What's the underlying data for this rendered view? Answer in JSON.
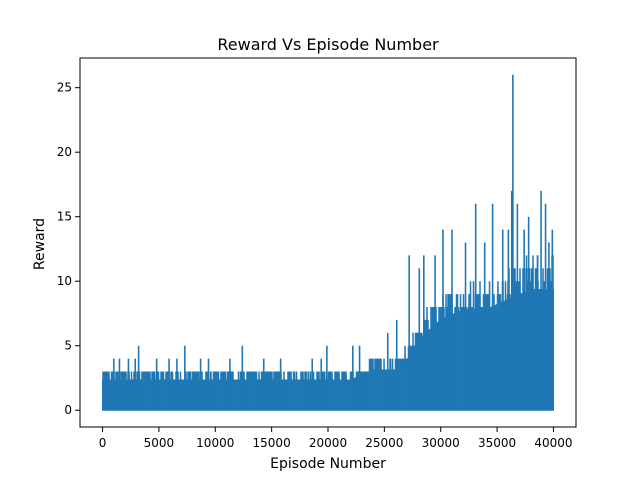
{
  "chart_data": {
    "type": "line",
    "title": "Reward Vs Episode Number",
    "xlabel": "Episode Number",
    "ylabel": "Reward",
    "xlim": [
      -2000,
      42000
    ],
    "ylim": [
      -1.3,
      27.3
    ],
    "xticks": [
      0,
      5000,
      10000,
      15000,
      20000,
      25000,
      30000,
      35000,
      40000
    ],
    "xtick_labels": [
      "0",
      "5000",
      "10000",
      "15000",
      "20000",
      "25000",
      "30000",
      "35000",
      "40000"
    ],
    "yticks": [
      0,
      5,
      10,
      15,
      20,
      25
    ],
    "ytick_labels": [
      "0",
      "5",
      "10",
      "15",
      "20",
      "25"
    ],
    "grid": false,
    "legend": "none",
    "color": "#1f77b4",
    "series": [
      {
        "x_range": [
          0,
          40000
        ],
        "band": {
          "x": [
            0,
            2500,
            5000,
            10000,
            15000,
            20000,
            22000,
            24000,
            26000,
            27000,
            28000,
            30000,
            32000,
            34000,
            36000,
            38000,
            40000
          ],
          "low": [
            0,
            0,
            0,
            0,
            0,
            0,
            0,
            0,
            0,
            0,
            0,
            0,
            0,
            0,
            0,
            0,
            0
          ],
          "high": [
            3,
            3,
            3,
            3,
            3,
            3,
            3,
            4,
            4,
            5,
            7,
            9,
            10,
            10,
            11,
            12,
            12
          ]
        },
        "spikes": [
          {
            "x": 300,
            "y": 3
          },
          {
            "x": 1000,
            "y": 4
          },
          {
            "x": 1500,
            "y": 4
          },
          {
            "x": 2300,
            "y": 4
          },
          {
            "x": 2900,
            "y": 4
          },
          {
            "x": 3200,
            "y": 5
          },
          {
            "x": 4800,
            "y": 4
          },
          {
            "x": 5900,
            "y": 4
          },
          {
            "x": 6600,
            "y": 4
          },
          {
            "x": 7300,
            "y": 5
          },
          {
            "x": 8700,
            "y": 4
          },
          {
            "x": 9400,
            "y": 4
          },
          {
            "x": 11300,
            "y": 4
          },
          {
            "x": 12400,
            "y": 5
          },
          {
            "x": 14300,
            "y": 4
          },
          {
            "x": 15800,
            "y": 4
          },
          {
            "x": 18600,
            "y": 4
          },
          {
            "x": 19400,
            "y": 4
          },
          {
            "x": 19900,
            "y": 5
          },
          {
            "x": 22200,
            "y": 5
          },
          {
            "x": 22800,
            "y": 5
          },
          {
            "x": 25300,
            "y": 6
          },
          {
            "x": 26100,
            "y": 7
          },
          {
            "x": 27200,
            "y": 12
          },
          {
            "x": 28100,
            "y": 11
          },
          {
            "x": 28500,
            "y": 12
          },
          {
            "x": 29500,
            "y": 12
          },
          {
            "x": 30200,
            "y": 14
          },
          {
            "x": 31000,
            "y": 14
          },
          {
            "x": 32200,
            "y": 13
          },
          {
            "x": 33100,
            "y": 16
          },
          {
            "x": 33900,
            "y": 13
          },
          {
            "x": 34600,
            "y": 16
          },
          {
            "x": 35500,
            "y": 14
          },
          {
            "x": 36000,
            "y": 14
          },
          {
            "x": 36300,
            "y": 17
          },
          {
            "x": 36400,
            "y": 26
          },
          {
            "x": 36800,
            "y": 16
          },
          {
            "x": 37400,
            "y": 14
          },
          {
            "x": 37800,
            "y": 15
          },
          {
            "x": 38600,
            "y": 12
          },
          {
            "x": 38900,
            "y": 17
          },
          {
            "x": 39300,
            "y": 16
          },
          {
            "x": 39600,
            "y": 13
          },
          {
            "x": 39900,
            "y": 14
          }
        ]
      }
    ]
  }
}
